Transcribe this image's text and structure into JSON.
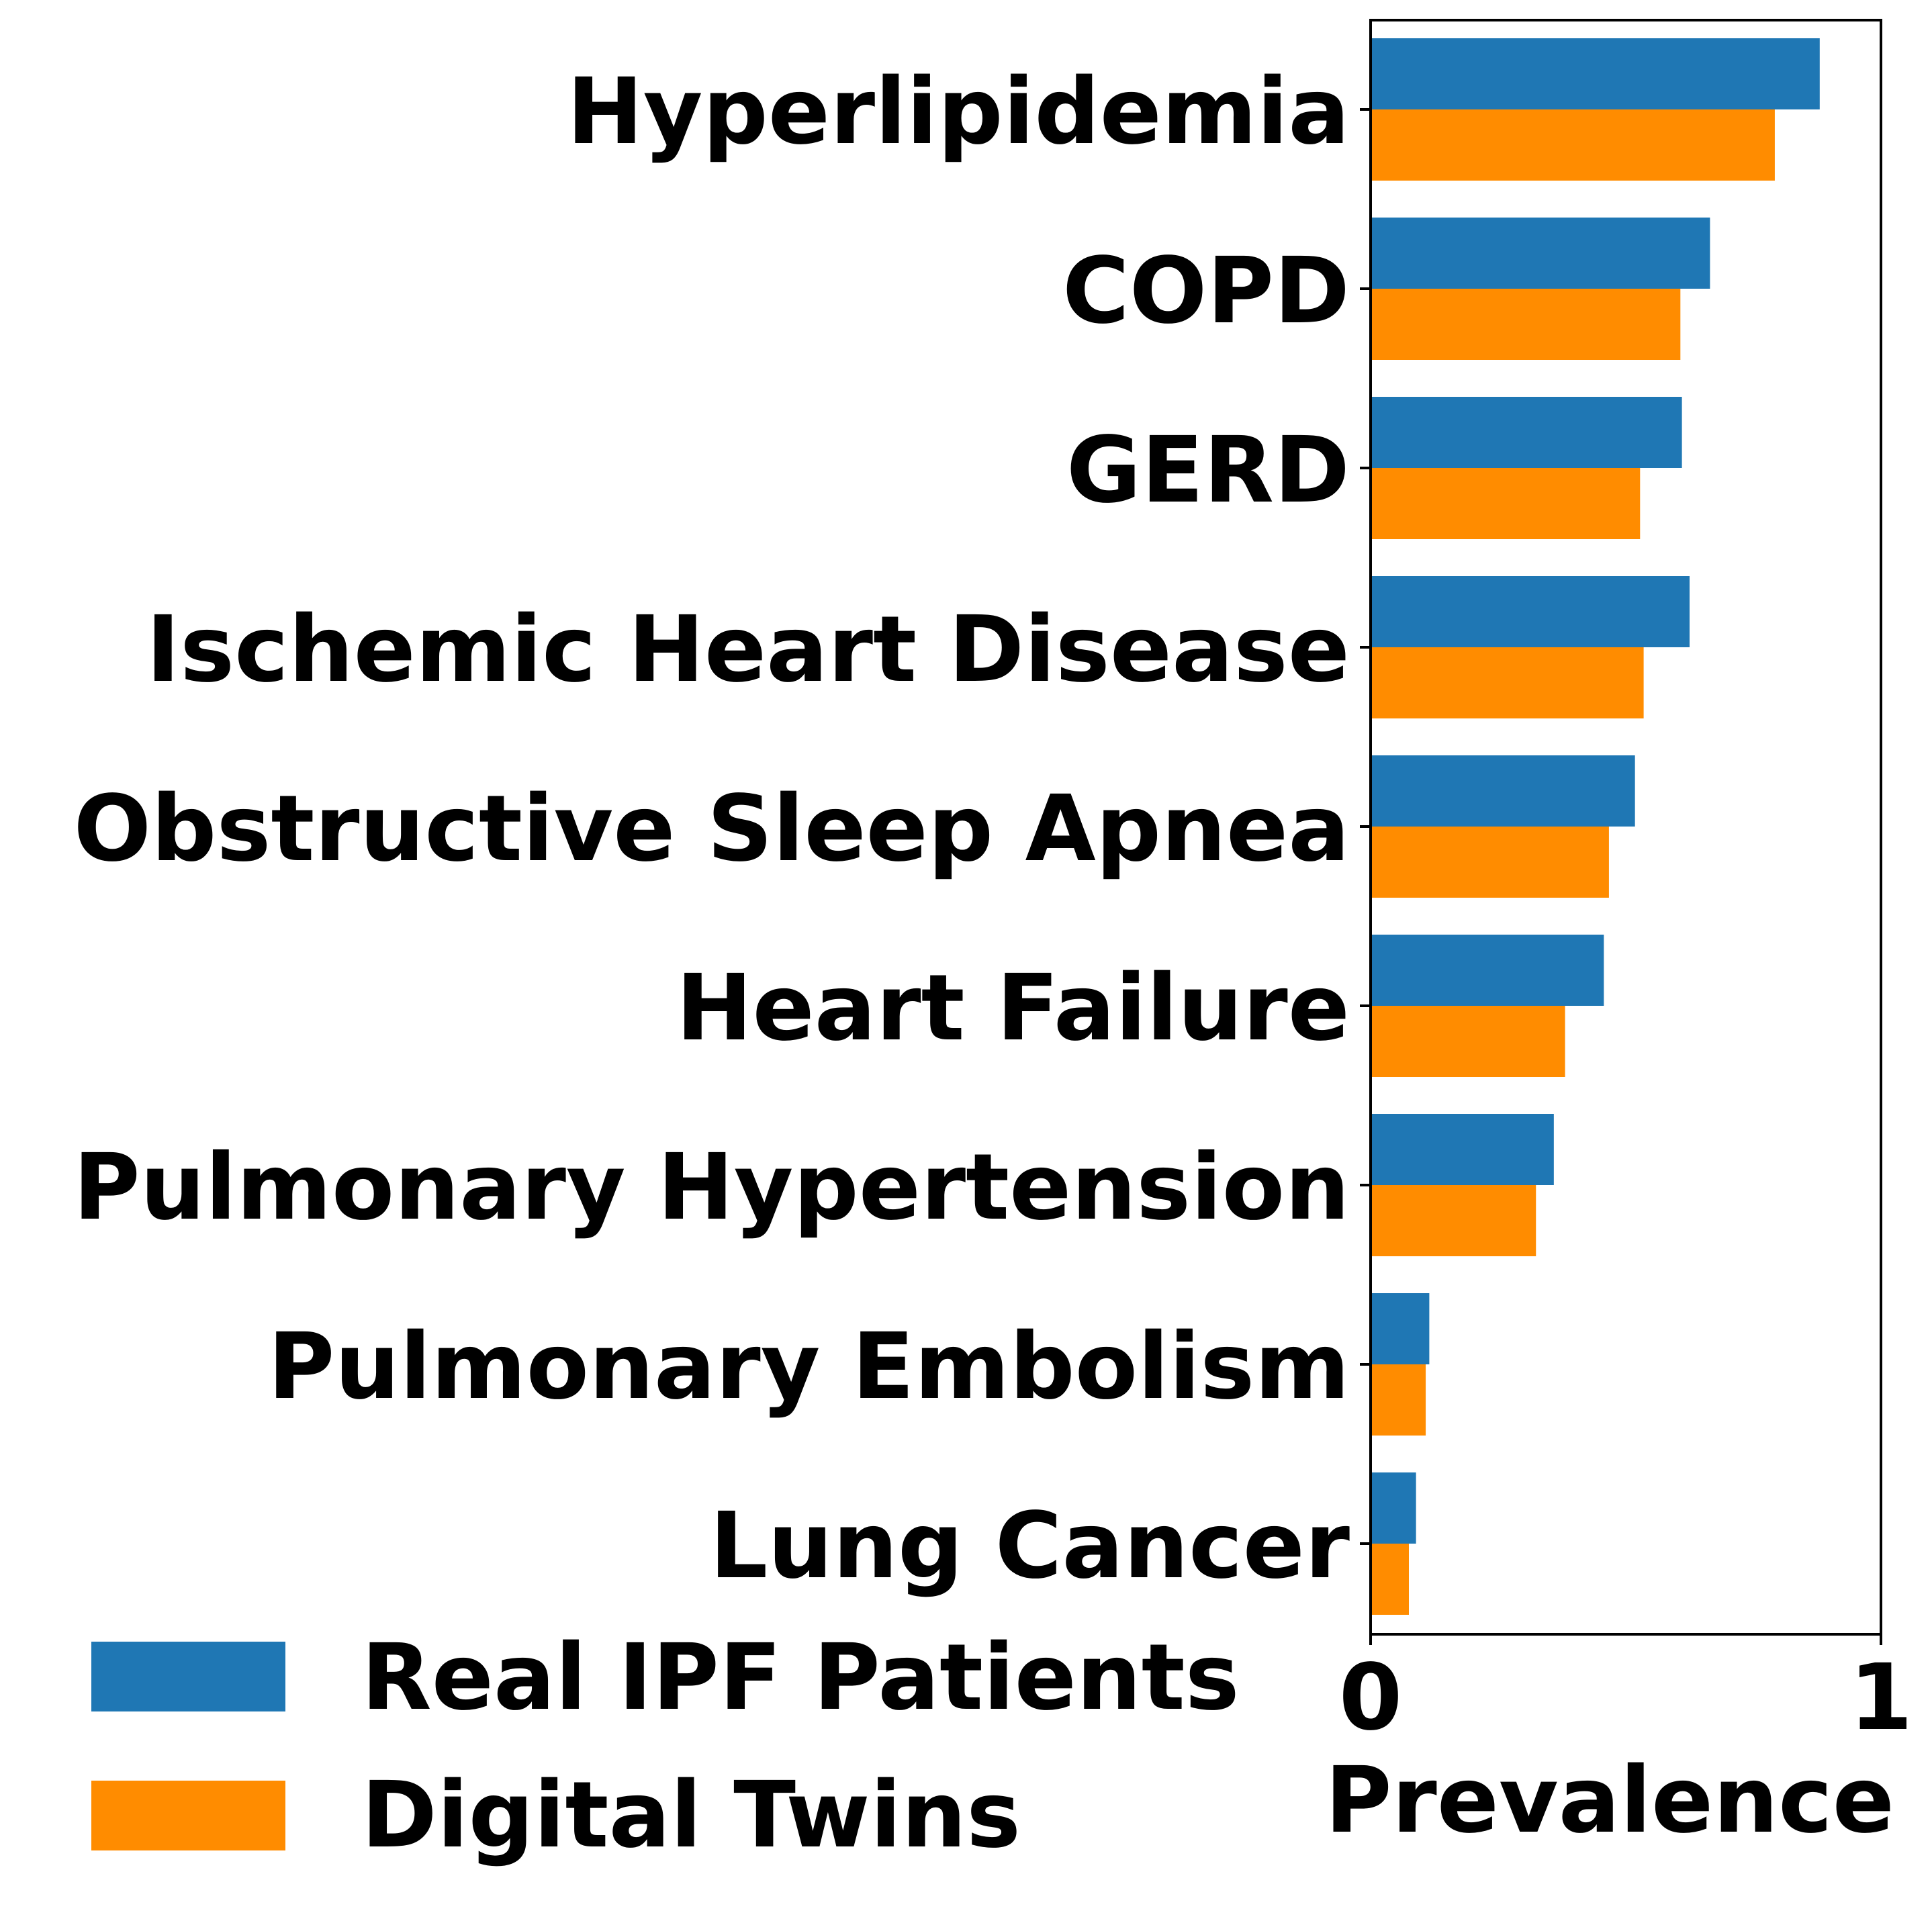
{
  "colors": {
    "series_1": "#1f77b4",
    "series_2": "#ff8c00",
    "axis": "#000000",
    "background": "#ffffff"
  },
  "chart_data": {
    "type": "bar",
    "orientation": "horizontal",
    "categories": [
      "Hyperlipidemia",
      "COPD",
      "GERD",
      "Ischemic Heart Disease",
      "Obstructive Sleep Apnea",
      "Heart Failure",
      "Pulmonary Hypertension",
      "Pulmonary Embolism",
      "Lung Cancer"
    ],
    "series": [
      {
        "name": "Real IPF Patients",
        "color": "#1f77b4",
        "values": [
          0.88,
          0.665,
          0.61,
          0.625,
          0.518,
          0.457,
          0.359,
          0.115,
          0.089
        ]
      },
      {
        "name": "Digital Twins",
        "color": "#ff8c00",
        "values": [
          0.792,
          0.607,
          0.528,
          0.535,
          0.467,
          0.381,
          0.324,
          0.108,
          0.075
        ]
      }
    ],
    "xlabel": "Prevalence",
    "ylabel": "",
    "xlim": [
      0,
      1
    ],
    "xticks": [
      "0",
      "1"
    ],
    "grid": false,
    "legend_position": "bottom-left"
  }
}
